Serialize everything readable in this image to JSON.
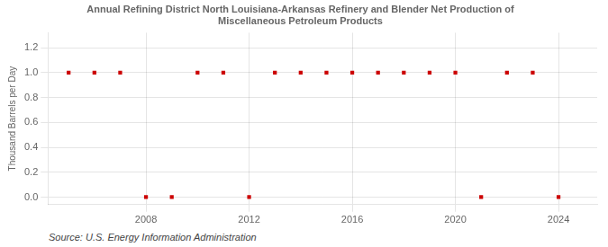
{
  "chart_data": {
    "type": "scatter",
    "title": "Annual Refining District North Louisiana-Arkansas Refinery and Blender Net Production of\nMiscellaneous Petroleum Products",
    "y_label": "Thousand Barrels per Day",
    "annotations": [
      "Source: U.S. Energy Information Administration"
    ],
    "x": [
      2005,
      2006,
      2007,
      2008,
      2009,
      2010,
      2011,
      2012,
      2013,
      2014,
      2015,
      2016,
      2017,
      2018,
      2019,
      2020,
      2021,
      2022,
      2023,
      2024
    ],
    "values": [
      1.0,
      1.0,
      1.0,
      0.0,
      0.0,
      1.0,
      1.0,
      0.0,
      1.0,
      1.0,
      1.0,
      1.0,
      1.0,
      1.0,
      1.0,
      1.0,
      0.0,
      1.0,
      1.0,
      0.0
    ],
    "color": "#cc0000",
    "marker": "square",
    "xlim": [
      2004.2,
      2025.5
    ],
    "xticks": [
      2008,
      2012,
      2016,
      2020,
      2024
    ],
    "ylim": [
      -0.06,
      1.32
    ],
    "yticks": [
      {
        "value": 0.0,
        "label": "0.0"
      },
      0.2,
      0.4,
      0.6,
      0.8,
      {
        "value": 1.0,
        "label": "1.0"
      },
      1.2
    ],
    "grid": true
  }
}
